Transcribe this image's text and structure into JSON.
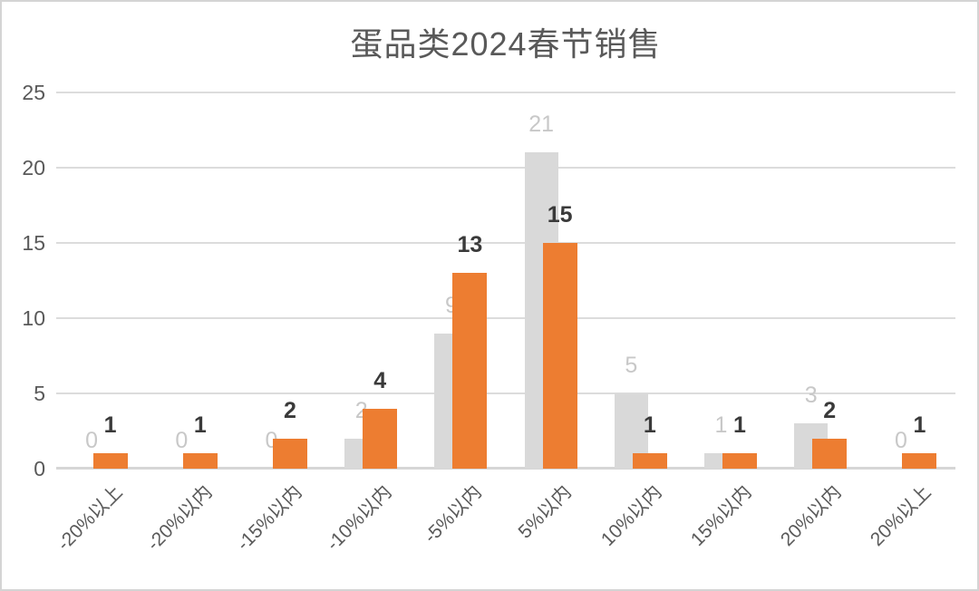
{
  "chart_data": {
    "type": "bar",
    "title": "蛋品类2024春节销售",
    "categories": [
      "-20%以上",
      "-20%以内",
      "-15%以内",
      "-10%以内",
      "-5%以内",
      "5%以内",
      "10%以内",
      "15%以内",
      "20%以内",
      "20%以上"
    ],
    "series": [
      {
        "name": "gray-series",
        "color": "#D9D9D9",
        "label_color": "#C8C8C8",
        "values": [
          0,
          0,
          0,
          2,
          9,
          21,
          5,
          1,
          3,
          0
        ]
      },
      {
        "name": "orange-series",
        "color": "#ED7D31",
        "label_color": "#3A3A3A",
        "values": [
          1,
          1,
          2,
          4,
          13,
          15,
          1,
          1,
          2,
          1
        ]
      }
    ],
    "y_ticks": [
      0,
      5,
      10,
      15,
      20,
      25
    ],
    "ylim": [
      0,
      25
    ],
    "xlabel": "",
    "ylabel": "",
    "grid": true,
    "legend": "none",
    "data_labels": true,
    "gridline_color": "#DCDCDC",
    "axis_text_color": "#595959"
  }
}
